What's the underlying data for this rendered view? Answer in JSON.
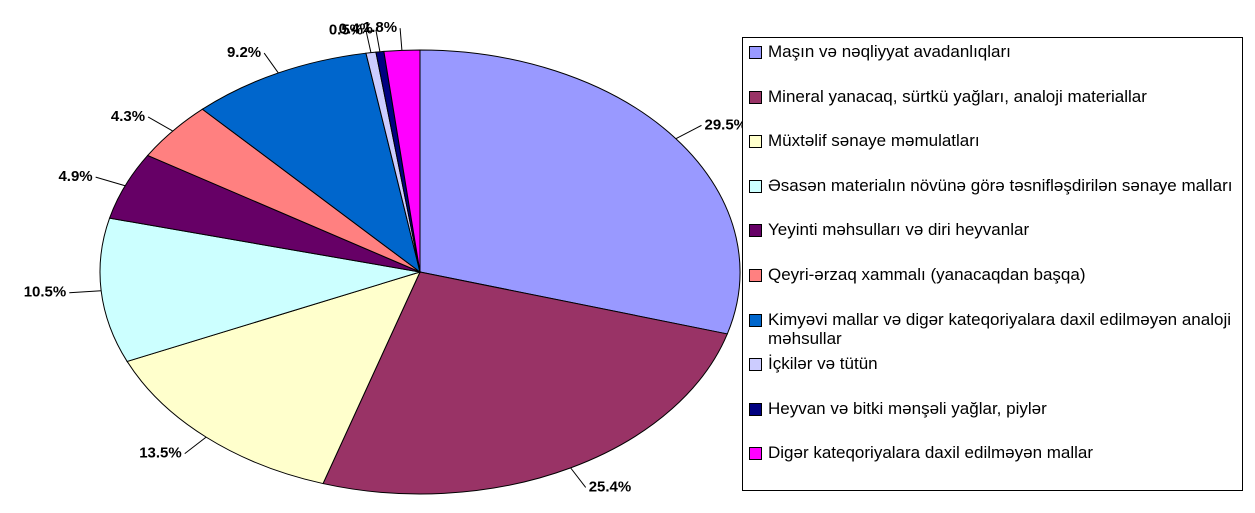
{
  "chart_data": {
    "type": "pie",
    "categories": [
      "Maşın və nəqliyyat avadanlıqları",
      "Mineral yanacaq, sürtkü yağları, analoji materiallar",
      "Müxtəlif sənaye məmulatları",
      "Əsasən materialın növünə görə təsnifləşdirilən sənaye malları",
      "Yeyinti məhsulları və diri heyvanlar",
      "Qeyri-ərzaq xammalı (yanacaqdan başqa)",
      "Kimyəvi mallar və digər kateqoriyalara daxil edilməyən analoji məhsullar",
      "İçkilər və tütün",
      "Heyvan və bitki mənşəli yağlar, piylər",
      "Digər kateqoriyalara daxil edilməyən mallar"
    ],
    "values": [
      29.5,
      25.4,
      13.5,
      10.5,
      4.9,
      4.3,
      9.2,
      0.5,
      0.4,
      1.8
    ],
    "value_labels": [
      "29.5%",
      "25.4%",
      "13.5%",
      "10.5%",
      "4.9%",
      "4.3%",
      "9.2%",
      "0.5%",
      "0.4%",
      "1.8%"
    ],
    "colors": [
      "#9999ff",
      "#993366",
      "#ffffcc",
      "#ccffff",
      "#660066",
      "#ff8080",
      "#0066cc",
      "#ccccff",
      "#000080",
      "#ff00ff"
    ],
    "legend": "right"
  }
}
